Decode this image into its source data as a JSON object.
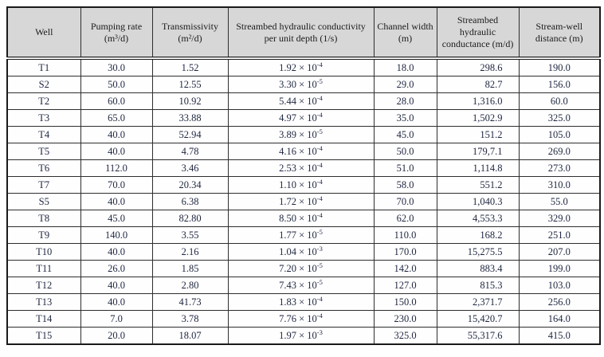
{
  "colors": {
    "header_bg": "#d7d7d7",
    "border": "#2e2e2e",
    "outer_border": "#1a1a1a",
    "text": "#1f2740"
  },
  "table": {
    "columns": [
      {
        "key": "well",
        "label": "Well"
      },
      {
        "key": "pumping_rate",
        "label": "Pumping rate (m³/d)"
      },
      {
        "key": "transmissivity",
        "label": "Transmissivity (m²/d)"
      },
      {
        "key": "conductivity",
        "label": "Streambed hydraulic conductivity per unit depth (1/s)"
      },
      {
        "key": "channel_width",
        "label": "Channel width (m)"
      },
      {
        "key": "conductance",
        "label": "Streambed hydraulic conductance (m/d)"
      },
      {
        "key": "distance",
        "label": "Stream-well distance (m)"
      }
    ],
    "rows": [
      {
        "well": "T1",
        "pumping_rate": "30.0",
        "transmissivity": "1.52",
        "conductivity": "1.92 × 10^-4",
        "channel_width": "18.0",
        "conductance": "298.6",
        "distance": "190.0"
      },
      {
        "well": "S2",
        "pumping_rate": "50.0",
        "transmissivity": "12.55",
        "conductivity": "3.30 × 10^-5",
        "channel_width": "29.0",
        "conductance": "82.7",
        "distance": "156.0"
      },
      {
        "well": "T2",
        "pumping_rate": "60.0",
        "transmissivity": "10.92",
        "conductivity": "5.44 × 10^-4",
        "channel_width": "28.0",
        "conductance": "1,316.0",
        "distance": "60.0"
      },
      {
        "well": "T3",
        "pumping_rate": "65.0",
        "transmissivity": "33.88",
        "conductivity": "4.97 × 10^-4",
        "channel_width": "35.0",
        "conductance": "1,502.9",
        "distance": "325.0"
      },
      {
        "well": "T4",
        "pumping_rate": "40.0",
        "transmissivity": "52.94",
        "conductivity": "3.89 × 10^-5",
        "channel_width": "45.0",
        "conductance": "151.2",
        "distance": "105.0"
      },
      {
        "well": "T5",
        "pumping_rate": "40.0",
        "transmissivity": "4.78",
        "conductivity": "4.16 × 10^-4",
        "channel_width": "50.0",
        "conductance": "179,7.1",
        "distance": "269.0"
      },
      {
        "well": "T6",
        "pumping_rate": "112.0",
        "transmissivity": "3.46",
        "conductivity": "2.53 × 10^-4",
        "channel_width": "51.0",
        "conductance": "1,114.8",
        "distance": "273.0"
      },
      {
        "well": "T7",
        "pumping_rate": "70.0",
        "transmissivity": "20.34",
        "conductivity": "1.10 × 10^-4",
        "channel_width": "58.0",
        "conductance": "551.2",
        "distance": "310.0"
      },
      {
        "well": "S5",
        "pumping_rate": "40.0",
        "transmissivity": "6.38",
        "conductivity": "1.72 × 10^-4",
        "channel_width": "70.0",
        "conductance": "1,040.3",
        "distance": "55.0"
      },
      {
        "well": "T8",
        "pumping_rate": "45.0",
        "transmissivity": "82.80",
        "conductivity": "8.50 × 10^-4",
        "channel_width": "62.0",
        "conductance": "4,553.3",
        "distance": "329.0"
      },
      {
        "well": "T9",
        "pumping_rate": "140.0",
        "transmissivity": "3.55",
        "conductivity": "1.77 × 10^-5",
        "channel_width": "110.0",
        "conductance": "168.2",
        "distance": "251.0"
      },
      {
        "well": "T10",
        "pumping_rate": "40.0",
        "transmissivity": "2.16",
        "conductivity": "1.04 × 10^-3",
        "channel_width": "170.0",
        "conductance": "15,275.5",
        "distance": "207.0"
      },
      {
        "well": "T11",
        "pumping_rate": "26.0",
        "transmissivity": "1.85",
        "conductivity": "7.20 × 10^-5",
        "channel_width": "142.0",
        "conductance": "883.4",
        "distance": "199.0"
      },
      {
        "well": "T12",
        "pumping_rate": "40.0",
        "transmissivity": "2.80",
        "conductivity": "7.43 × 10^-5",
        "channel_width": "127.0",
        "conductance": "815.3",
        "distance": "103.0"
      },
      {
        "well": "T13",
        "pumping_rate": "40.0",
        "transmissivity": "41.73",
        "conductivity": "1.83 × 10^-4",
        "channel_width": "150.0",
        "conductance": "2,371.7",
        "distance": "256.0"
      },
      {
        "well": "T14",
        "pumping_rate": "7.0",
        "transmissivity": "3.78",
        "conductivity": "7.76 × 10^-4",
        "channel_width": "230.0",
        "conductance": "15,420.7",
        "distance": "164.0"
      },
      {
        "well": "T15",
        "pumping_rate": "20.0",
        "transmissivity": "18.07",
        "conductivity": "1.97 × 10^-3",
        "channel_width": "325.0",
        "conductance": "55,317.6",
        "distance": "415.0"
      }
    ]
  }
}
